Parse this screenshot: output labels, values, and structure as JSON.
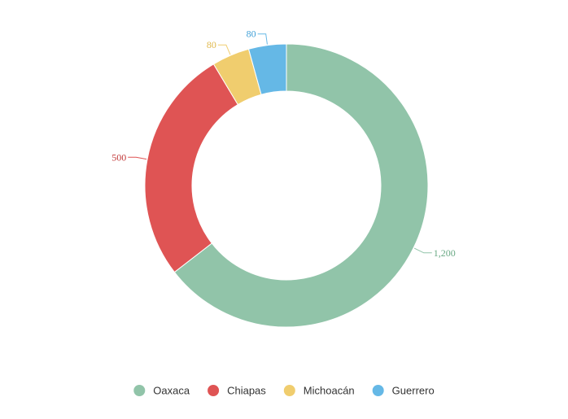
{
  "chart_data": {
    "type": "pie",
    "variant": "donut",
    "title": "",
    "categories": [
      "Oaxaca",
      "Chiapas",
      "Michoacán",
      "Guerrero"
    ],
    "values": [
      1200,
      500,
      80,
      80
    ],
    "value_labels": [
      "1,200",
      "500",
      "80",
      "80"
    ],
    "colors": [
      "#91c4a9",
      "#df5454",
      "#f0cd6e",
      "#65b8e6"
    ],
    "legend": {
      "placement": "bottom-center",
      "items": [
        {
          "label": "Oaxaca",
          "color": "#91c4a9"
        },
        {
          "label": "Chiapas",
          "color": "#df5454"
        },
        {
          "label": "Michoacán",
          "color": "#f0cd6e"
        },
        {
          "label": "Guerrero",
          "color": "#65b8e6"
        }
      ]
    }
  }
}
